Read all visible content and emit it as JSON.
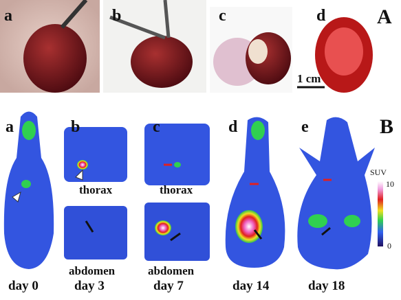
{
  "panel_A": {
    "label": "A",
    "photos": [
      {
        "label": "a"
      },
      {
        "label": "b"
      },
      {
        "label": "c"
      },
      {
        "label": "d"
      }
    ],
    "scale_bar": "1 cm"
  },
  "panel_B": {
    "label": "B",
    "scans": [
      {
        "label": "a",
        "day": "day 0"
      },
      {
        "label": "b",
        "day": "day 3",
        "regions": [
          "thorax",
          "abdomen"
        ]
      },
      {
        "label": "c",
        "day": "day 7",
        "regions": [
          "thorax",
          "abdomen"
        ]
      },
      {
        "label": "d",
        "day": "day 14"
      },
      {
        "label": "e",
        "day": "day 18"
      }
    ],
    "colorbar": {
      "title": "SUV",
      "max": 10,
      "min": 0
    }
  }
}
